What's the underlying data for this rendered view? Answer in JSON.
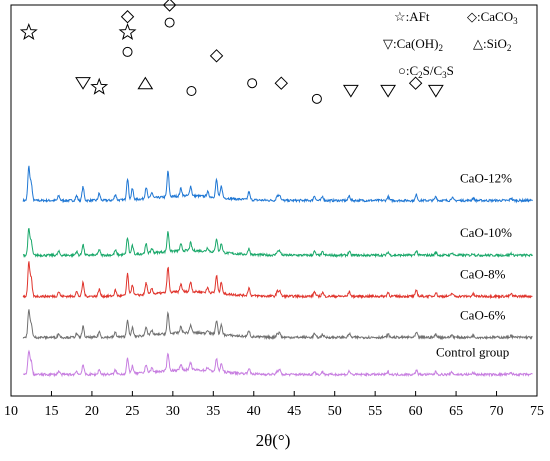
{
  "chart_data": {
    "type": "line",
    "xlabel": "2θ(°)",
    "ylabel": "",
    "xlim": [
      10,
      75
    ],
    "xticks": [
      10,
      15,
      20,
      25,
      30,
      35,
      40,
      45,
      50,
      55,
      60,
      65,
      70,
      75
    ],
    "y_ticks_shown": false,
    "grid": false,
    "legend_position": "top-right",
    "legend": [
      {
        "symbol": "star",
        "label": "AFt"
      },
      {
        "symbol": "diamond",
        "label": "CaCO3"
      },
      {
        "symbol": "triangle-down",
        "label": "Ca(OH)2"
      },
      {
        "symbol": "triangle-up",
        "label": "SiO2"
      },
      {
        "symbol": "circle",
        "label": "C2S/C3S"
      }
    ],
    "series": [
      {
        "name": "CaO-12%",
        "color": "#1f77d4",
        "baseline": 0.5,
        "intensity_scale": 1.0
      },
      {
        "name": "CaO-10%",
        "color": "#1aa86a",
        "baseline": 0.36,
        "intensity_scale": 0.78
      },
      {
        "name": "CaO-8%",
        "color": "#e0342c",
        "baseline": 0.255,
        "intensity_scale": 1.0
      },
      {
        "name": "CaO-6%",
        "color": "#707070",
        "baseline": 0.15,
        "intensity_scale": 0.8
      },
      {
        "name": "Control group",
        "color": "#c77ee0",
        "baseline": 0.055,
        "intensity_scale": 0.72
      }
    ],
    "peaks": [
      {
        "x": 12.2,
        "height": 0.085
      },
      {
        "x": 12.5,
        "height": 0.045
      },
      {
        "x": 15.9,
        "height": 0.012
      },
      {
        "x": 18.1,
        "height": 0.012
      },
      {
        "x": 18.9,
        "height": 0.035
      },
      {
        "x": 20.9,
        "height": 0.018
      },
      {
        "x": 22.9,
        "height": 0.015
      },
      {
        "x": 24.4,
        "height": 0.055
      },
      {
        "x": 25.0,
        "height": 0.028
      },
      {
        "x": 26.7,
        "height": 0.03
      },
      {
        "x": 27.4,
        "height": 0.015
      },
      {
        "x": 29.4,
        "height": 0.065
      },
      {
        "x": 31.0,
        "height": 0.02
      },
      {
        "x": 32.2,
        "height": 0.025
      },
      {
        "x": 34.3,
        "height": 0.012
      },
      {
        "x": 35.4,
        "height": 0.045
      },
      {
        "x": 36.0,
        "height": 0.03
      },
      {
        "x": 39.4,
        "height": 0.02
      },
      {
        "x": 42.9,
        "height": 0.012
      },
      {
        "x": 43.2,
        "height": 0.015
      },
      {
        "x": 47.5,
        "height": 0.012
      },
      {
        "x": 48.5,
        "height": 0.01
      },
      {
        "x": 51.8,
        "height": 0.012
      },
      {
        "x": 56.6,
        "height": 0.01
      },
      {
        "x": 60.1,
        "height": 0.015
      },
      {
        "x": 62.5,
        "height": 0.01
      },
      {
        "x": 64.5,
        "height": 0.008
      },
      {
        "x": 67.1,
        "height": 0.006
      },
      {
        "x": 71.8,
        "height": 0.006
      }
    ],
    "peak_markers": [
      {
        "symbol": "star",
        "x": 12.2,
        "level": 0.93
      },
      {
        "symbol": "triangle-down",
        "x": 18.9,
        "level": 0.8
      },
      {
        "symbol": "star",
        "x": 20.9,
        "level": 0.79
      },
      {
        "symbol": "diamond",
        "x": 24.4,
        "level": 0.97
      },
      {
        "symbol": "star",
        "x": 24.4,
        "level": 0.93
      },
      {
        "symbol": "circle",
        "x": 24.4,
        "level": 0.88
      },
      {
        "symbol": "triangle-up",
        "x": 26.6,
        "level": 0.8
      },
      {
        "symbol": "diamond",
        "x": 29.6,
        "level": 1.0
      },
      {
        "symbol": "circle",
        "x": 29.6,
        "level": 0.955
      },
      {
        "symbol": "circle",
        "x": 32.3,
        "level": 0.78
      },
      {
        "symbol": "diamond",
        "x": 35.4,
        "level": 0.87
      },
      {
        "symbol": "circle",
        "x": 39.8,
        "level": 0.8
      },
      {
        "symbol": "diamond",
        "x": 43.4,
        "level": 0.8
      },
      {
        "symbol": "circle",
        "x": 47.8,
        "level": 0.76
      },
      {
        "symbol": "triangle-down",
        "x": 52.0,
        "level": 0.78
      },
      {
        "symbol": "triangle-down",
        "x": 56.6,
        "level": 0.78
      },
      {
        "symbol": "diamond",
        "x": 60.0,
        "level": 0.8
      },
      {
        "symbol": "triangle-down",
        "x": 62.5,
        "level": 0.78
      }
    ]
  }
}
